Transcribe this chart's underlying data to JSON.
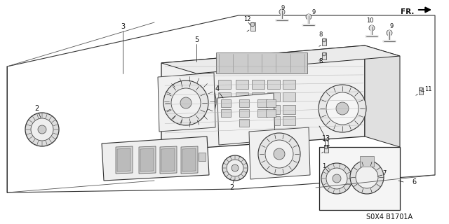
{
  "bg_color": "#ffffff",
  "footer_text": "S0X4 B1701A",
  "fr_label": "FR.",
  "lw_main": 0.9,
  "lw_thin": 0.5
}
